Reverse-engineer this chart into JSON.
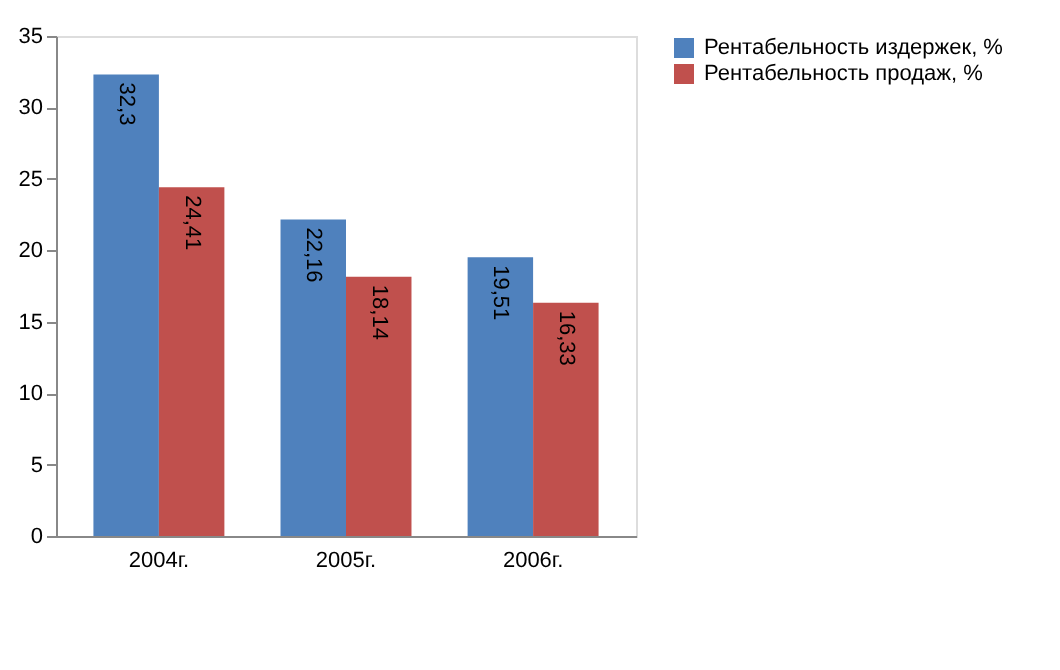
{
  "chart_data": {
    "type": "bar",
    "categories": [
      "2004г.",
      "2005г.",
      "2006г."
    ],
    "series": [
      {
        "name": "Рентабельность издержек, %",
        "color": "#4f81bd",
        "values": [
          32.3,
          22.16,
          19.51
        ],
        "value_labels": [
          "32,3",
          "22,16",
          "19,51"
        ]
      },
      {
        "name": "Рентабельность продаж, %",
        "color": "#c0504d",
        "values": [
          24.41,
          18.14,
          16.33
        ],
        "value_labels": [
          "24,41",
          "18,14",
          "16,33"
        ]
      }
    ],
    "ylim": [
      0,
      35
    ],
    "yticks": [
      0,
      5,
      10,
      15,
      20,
      25,
      30,
      35
    ],
    "grid": false,
    "legend": "right"
  }
}
